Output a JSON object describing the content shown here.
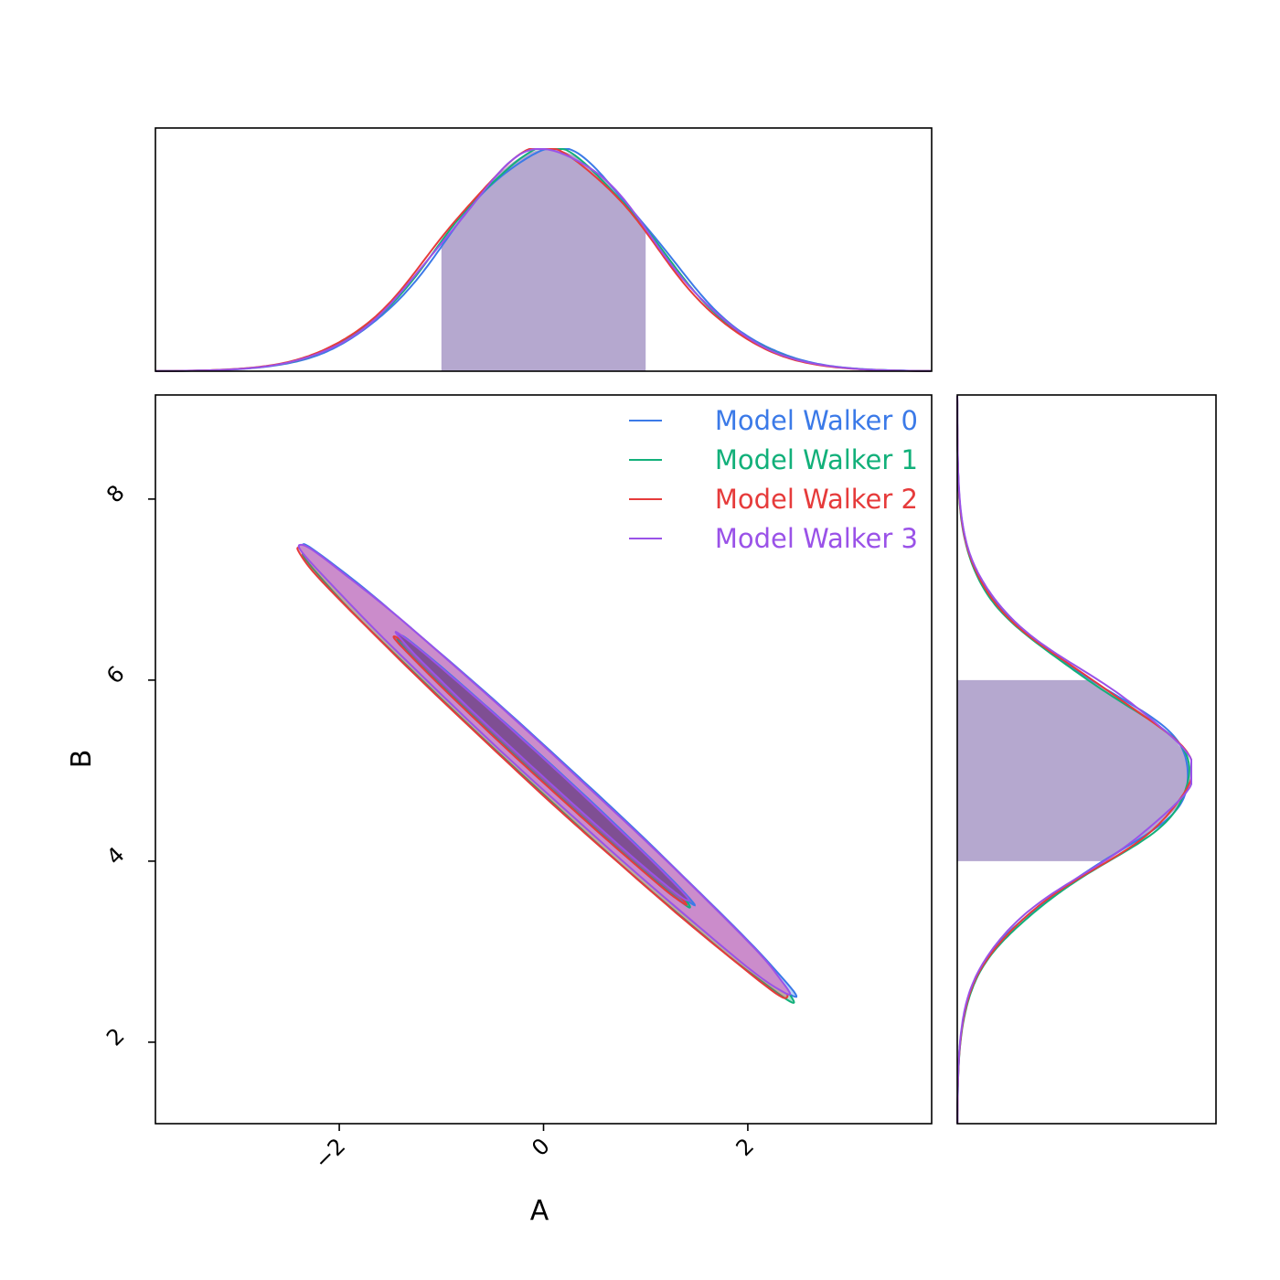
{
  "chart_data": {
    "type": "corner",
    "parameters": [
      "A",
      "B"
    ],
    "xlabel": "A",
    "ylabel": "B",
    "xlim": [
      -3.8,
      3.8
    ],
    "ylim": [
      1.1,
      9.15
    ],
    "x_ticks": [
      -2,
      0,
      2
    ],
    "x_tick_labels": [
      "−2",
      "0",
      "2"
    ],
    "y_ticks": [
      2,
      4,
      6,
      8
    ],
    "y_tick_labels": [
      "2",
      "4",
      "6",
      "8"
    ],
    "legend_position": "top-right",
    "marginal_A": {
      "mean": 0.05,
      "sd": 1.0,
      "shaded_interval": [
        -1.0,
        1.0
      ]
    },
    "marginal_B": {
      "mean": 4.95,
      "sd": 1.0,
      "shaded_interval": [
        4.0,
        6.0
      ]
    },
    "contours": {
      "inner": {
        "ellipse": {
          "center": [
            0.0,
            5.0
          ],
          "semi_major": 2.06,
          "semi_minor": 0.072,
          "angle_deg": -46
        },
        "fill": "#7f4f93"
      },
      "outer": {
        "ellipse": {
          "center": [
            0.02,
            4.98
          ],
          "semi_major": 3.45,
          "semi_minor": 0.17,
          "angle_deg": -46
        },
        "fill": "#cb8ccb"
      }
    },
    "series": [
      {
        "name": "Model Walker 0",
        "color": "#3b7ae8",
        "shift": [
          0.03,
          0.01
        ]
      },
      {
        "name": "Model Walker 1",
        "color": "#12b07a",
        "shift": [
          0.0,
          -0.02
        ]
      },
      {
        "name": "Model Walker 2",
        "color": "#e63b3b",
        "shift": [
          -0.03,
          0.0
        ]
      },
      {
        "name": "Model Walker 3",
        "color": "#9a52e8",
        "shift": [
          0.0,
          0.03
        ]
      }
    ],
    "marginal_fill": "#b5a8cf"
  }
}
